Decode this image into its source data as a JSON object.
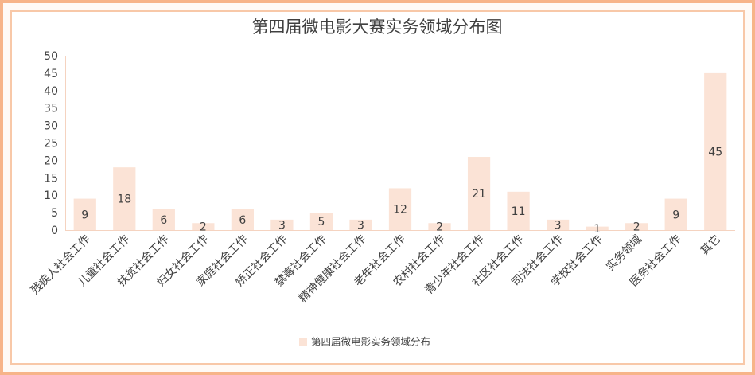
{
  "chart_data": {
    "type": "bar",
    "title": "第四届微电影大赛实务领域分布图",
    "categories": [
      "残疾人社会工作",
      "儿童社会工作",
      "扶贫社会工作",
      "妇女社会工作",
      "家庭社会工作",
      "矫正社会工作",
      "禁毒社会工作",
      "精神健康社会工作",
      "老年社会工作",
      "农村社会工作",
      "青少年社会工作",
      "社区社会工作",
      "司法社会工作",
      "学校社会工作",
      "实务领域",
      "医务社会工作",
      "其它"
    ],
    "series": [
      {
        "name": "第四届微电影实务领域分布",
        "values": [
          9,
          18,
          6,
          2,
          6,
          3,
          5,
          3,
          12,
          2,
          21,
          11,
          3,
          1,
          2,
          9,
          45
        ]
      }
    ],
    "ylim": [
      0,
      50
    ],
    "yticks": [
      0,
      5,
      10,
      15,
      20,
      25,
      30,
      35,
      40,
      45,
      50
    ],
    "xlabel": "",
    "ylabel": "",
    "grid": false,
    "legend_position": "bottom",
    "colors": {
      "bar": "#fbe3d6",
      "text": "#404040",
      "axis": "#f5d3c0",
      "title": "#404040"
    }
  }
}
